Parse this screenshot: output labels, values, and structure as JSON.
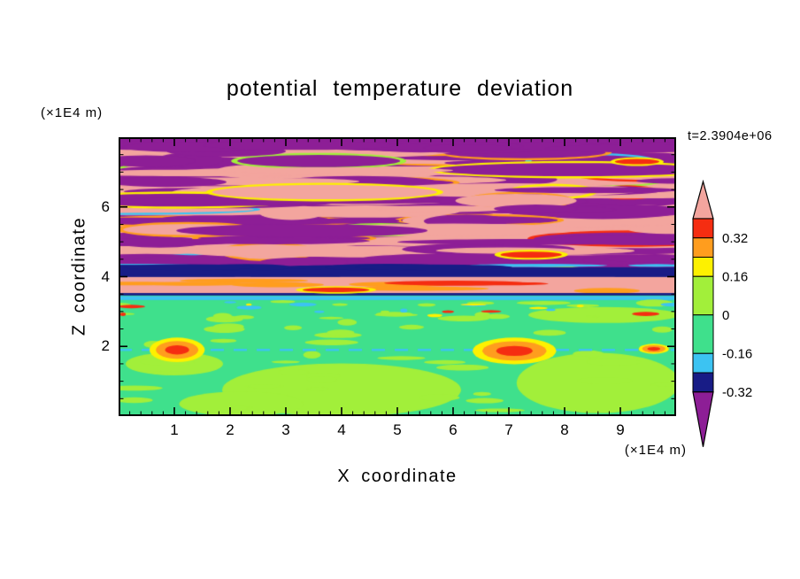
{
  "header": {
    "title": "potential temperature deviation",
    "time_label": "t=2.3904e+06"
  },
  "axes": {
    "x": {
      "label": "X coordinate",
      "unit": "(×1E4 m)",
      "min": 0,
      "max": 10,
      "major_ticks": [
        1,
        2,
        3,
        4,
        5,
        6,
        7,
        8,
        9
      ],
      "tick_labels": [
        "1",
        "2",
        "3",
        "4",
        "5",
        "6",
        "7",
        "8",
        "9"
      ],
      "minor_step": 0.2
    },
    "y": {
      "label": "Z coordinate",
      "unit": "(×1E4 m)",
      "min": 0,
      "max": 8,
      "major_ticks": [
        2,
        4,
        6
      ],
      "tick_labels": [
        "2",
        "4",
        "6"
      ],
      "minor_step": 0.5
    }
  },
  "colorbar": {
    "tick_labels": [
      "0.32",
      "0.16",
      "0",
      "-0.16",
      "-0.32"
    ],
    "segments": [
      {
        "palette": "pink",
        "type": "arrow-up"
      },
      {
        "palette": "red",
        "units": 1,
        "label_below": "0.32"
      },
      {
        "palette": "orange",
        "units": 1,
        "label_below": null
      },
      {
        "palette": "yellow",
        "units": 1,
        "label_below": "0.16"
      },
      {
        "palette": "green_yellow",
        "units": 2,
        "label_below": "0"
      },
      {
        "palette": "spring_green",
        "units": 2,
        "label_below": "-0.16"
      },
      {
        "palette": "cyan",
        "units": 1,
        "label_below": null
      },
      {
        "palette": "navy",
        "units": 1,
        "label_below": "-0.32"
      },
      {
        "palette": "purple",
        "type": "arrow-down"
      }
    ]
  },
  "chart_data": {
    "type": "heatmap",
    "subtype": "filled-contour",
    "title": "potential temperature deviation",
    "xlabel": "X coordinate",
    "ylabel": "Z coordinate",
    "x_unit": "(×1E4 m)",
    "y_unit": "(×1E4 m)",
    "xlim": [
      0,
      10
    ],
    "ylim": [
      0,
      8
    ],
    "time_annotation": "t=2.3904e+06",
    "contour_levels": [
      -0.32,
      -0.16,
      0,
      0.16,
      0.32
    ],
    "legend_position": "right",
    "palette": {
      "pink": "#f3a59e",
      "red": "#f52d11",
      "orange": "#ff9d1e",
      "yellow": "#fdf100",
      "green_yellow": "#a2ef3a",
      "spring_green": "#3fe08c",
      "cyan": "#3cc3f2",
      "navy": "#181c86",
      "purple": "#8d1e96"
    },
    "field_zones": [
      {
        "name": "top-cap",
        "y_from": 7.78,
        "y_to": 8.0,
        "fill": "purple"
      },
      {
        "name": "upper-turbulent-layers",
        "y_from": 3.55,
        "y_to": 8.0,
        "base": "pink",
        "blob_colors": [
          "purple",
          "pink"
        ],
        "accent_colors": [
          "red",
          "orange",
          "yellow",
          "green_yellow",
          "cyan"
        ],
        "blob_count": 240
      },
      {
        "name": "navy-band",
        "y_from": 3.99,
        "y_to": 4.27,
        "fill": "navy"
      },
      {
        "name": "salmon-band",
        "y_from": 3.53,
        "y_to": 3.99,
        "fill": "pink",
        "accent_colors": [
          "red",
          "orange"
        ]
      },
      {
        "name": "thin-navy-line",
        "y_from": 3.46,
        "y_to": 3.53,
        "fill": "navy"
      },
      {
        "name": "cyan-line",
        "y_from": 3.33,
        "y_to": 3.44,
        "fill": "cyan"
      },
      {
        "name": "lower-convective",
        "y_from": 0,
        "y_to": 3.53,
        "base": "spring_green",
        "patch_color": "green_yellow"
      },
      {
        "name": "dashed-cool-line",
        "y": 1.93,
        "fill": "cyan"
      }
    ],
    "features": [
      {
        "name": "warm-spot",
        "x": 1.05,
        "y": 1.9,
        "rx": 0.33,
        "ry": 0.22
      },
      {
        "name": "warm-spot",
        "x": 7.1,
        "y": 1.87,
        "rx": 0.5,
        "ry": 0.24
      },
      {
        "name": "warm-spot",
        "x": 9.6,
        "y": 1.93,
        "rx": 0.18,
        "ry": 0.09
      },
      {
        "name": "warm-streak",
        "x": 7.4,
        "y": 4.63,
        "rx": 0.55,
        "ry": 0.08
      },
      {
        "name": "warm-streak",
        "x": 9.3,
        "y": 7.3,
        "rx": 0.4,
        "ry": 0.07
      },
      {
        "name": "warm-streak",
        "x": 3.9,
        "y": 3.62,
        "rx": 0.6,
        "ry": 0.06
      }
    ]
  }
}
